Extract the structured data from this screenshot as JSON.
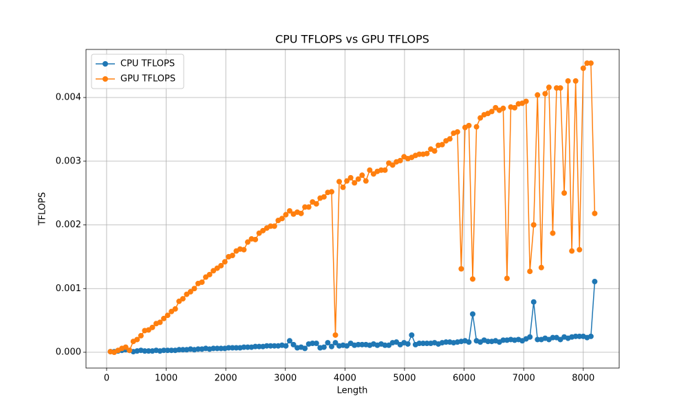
{
  "chart_data": {
    "type": "line",
    "title": "CPU TFLOPS vs GPU TFLOPS",
    "x_label": "Length",
    "y_label": "TFLOPS",
    "x": [
      64,
      128,
      192,
      256,
      320,
      384,
      448,
      512,
      576,
      640,
      704,
      768,
      832,
      896,
      960,
      1024,
      1088,
      1152,
      1216,
      1280,
      1344,
      1408,
      1472,
      1536,
      1600,
      1664,
      1728,
      1792,
      1856,
      1920,
      1984,
      2048,
      2112,
      2176,
      2240,
      2304,
      2368,
      2432,
      2496,
      2560,
      2624,
      2688,
      2752,
      2816,
      2880,
      2944,
      3008,
      3072,
      3136,
      3200,
      3264,
      3328,
      3392,
      3456,
      3520,
      3584,
      3648,
      3712,
      3776,
      3840,
      3904,
      3968,
      4032,
      4096,
      4160,
      4224,
      4288,
      4352,
      4416,
      4480,
      4544,
      4608,
      4672,
      4736,
      4800,
      4864,
      4928,
      4992,
      5056,
      5120,
      5184,
      5248,
      5312,
      5376,
      5440,
      5504,
      5568,
      5632,
      5696,
      5760,
      5824,
      5888,
      5952,
      6016,
      6080,
      6144,
      6208,
      6272,
      6336,
      6400,
      6464,
      6528,
      6592,
      6656,
      6720,
      6784,
      6848,
      6912,
      6976,
      7040,
      7104,
      7168,
      7232,
      7296,
      7360,
      7424,
      7488,
      7552,
      7616,
      7680,
      7744,
      7808,
      7872,
      7936,
      8000,
      8064,
      8128,
      8192
    ],
    "series": [
      {
        "name": "CPU TFLOPS",
        "color": "#1f77b4",
        "values": [
          1e-05,
          1e-05,
          2e-05,
          3e-05,
          4e-05,
          3e-05,
          1e-05,
          2e-05,
          3e-05,
          2e-05,
          2e-05,
          2e-05,
          3e-05,
          2e-05,
          3e-05,
          3e-05,
          3e-05,
          3e-05,
          4e-05,
          4e-05,
          4e-05,
          5e-05,
          4e-05,
          5e-05,
          5e-05,
          6e-05,
          5e-05,
          6e-05,
          6e-05,
          6e-05,
          6e-05,
          7e-05,
          7e-05,
          7e-05,
          7e-05,
          8e-05,
          8e-05,
          8e-05,
          9e-05,
          9e-05,
          9e-05,
          0.0001,
          0.0001,
          0.0001,
          0.0001,
          0.00011,
          0.0001,
          0.00018,
          0.00012,
          7e-05,
          8e-05,
          6e-05,
          0.00013,
          0.00014,
          0.00014,
          7e-05,
          8e-05,
          0.00015,
          9e-05,
          0.00015,
          0.0001,
          0.00011,
          0.0001,
          0.00014,
          0.00011,
          0.00012,
          0.00012,
          0.00012,
          0.00011,
          0.00013,
          0.00011,
          0.00013,
          0.00011,
          0.00011,
          0.00015,
          0.00016,
          0.00012,
          0.00015,
          0.00013,
          0.00027,
          0.00012,
          0.00014,
          0.00014,
          0.00014,
          0.00014,
          0.00015,
          0.00013,
          0.00015,
          0.00016,
          0.00016,
          0.00015,
          0.00016,
          0.00017,
          0.00018,
          0.00016,
          0.0006,
          0.00018,
          0.00016,
          0.00019,
          0.00017,
          0.00017,
          0.00018,
          0.00016,
          0.00019,
          0.00019,
          0.0002,
          0.00019,
          0.0002,
          0.00018,
          0.00021,
          0.00024,
          0.00079,
          0.0002,
          0.0002,
          0.00022,
          0.0002,
          0.00023,
          0.00023,
          0.0002,
          0.00024,
          0.00022,
          0.00024,
          0.00025,
          0.00025,
          0.00025,
          0.00023,
          0.00025,
          0.00111
        ]
      },
      {
        "name": "GPU TFLOPS",
        "color": "#ff7f0e",
        "values": [
          1e-05,
          0.0,
          3e-05,
          6e-05,
          8e-05,
          3e-05,
          0.00017,
          0.0002,
          0.00026,
          0.00034,
          0.00035,
          0.00039,
          0.00045,
          0.00047,
          0.00053,
          0.00058,
          0.00064,
          0.00068,
          0.0008,
          0.00084,
          0.00091,
          0.00095,
          0.001,
          0.00108,
          0.0011,
          0.00118,
          0.00122,
          0.00128,
          0.00132,
          0.00136,
          0.00142,
          0.0015,
          0.00152,
          0.00159,
          0.00162,
          0.00161,
          0.00173,
          0.00178,
          0.00177,
          0.00187,
          0.00191,
          0.00195,
          0.00198,
          0.00198,
          0.00207,
          0.0021,
          0.00216,
          0.00222,
          0.00217,
          0.0022,
          0.00218,
          0.00228,
          0.00228,
          0.00236,
          0.00233,
          0.00242,
          0.00244,
          0.00251,
          0.00252,
          0.00027,
          0.00268,
          0.00259,
          0.00269,
          0.00274,
          0.00266,
          0.00272,
          0.00278,
          0.00269,
          0.00286,
          0.0028,
          0.00284,
          0.00286,
          0.00286,
          0.00297,
          0.00294,
          0.00299,
          0.00301,
          0.00307,
          0.00304,
          0.00306,
          0.00309,
          0.00311,
          0.00311,
          0.00312,
          0.00319,
          0.00316,
          0.00325,
          0.00326,
          0.00332,
          0.00335,
          0.00344,
          0.00346,
          0.00131,
          0.00353,
          0.00356,
          0.00115,
          0.00354,
          0.00368,
          0.00373,
          0.00375,
          0.00378,
          0.00384,
          0.0038,
          0.00383,
          0.00116,
          0.00385,
          0.00384,
          0.0039,
          0.00391,
          0.00394,
          0.00127,
          0.002,
          0.00404,
          0.00133,
          0.00406,
          0.00416,
          0.00187,
          0.00415,
          0.00415,
          0.0025,
          0.00426,
          0.00159,
          0.00426,
          0.00161,
          0.00446,
          0.00454,
          0.00454,
          0.00218
        ]
      }
    ],
    "xlim": [
      -346,
      8603
    ],
    "xticks": [
      0,
      1000,
      2000,
      3000,
      4000,
      5000,
      6000,
      7000,
      8000
    ],
    "ylim": [
      -0.000248,
      0.004755
    ],
    "yticks": [
      {
        "value": 0,
        "label": "0.000"
      },
      {
        "value": 0.001,
        "label": "0.001"
      },
      {
        "value": 0.002,
        "label": "0.002"
      },
      {
        "value": 0.003,
        "label": "0.003"
      },
      {
        "value": 0.004,
        "label": "0.004"
      }
    ],
    "grid": true,
    "legend": "upper-left",
    "marker": "circle"
  }
}
